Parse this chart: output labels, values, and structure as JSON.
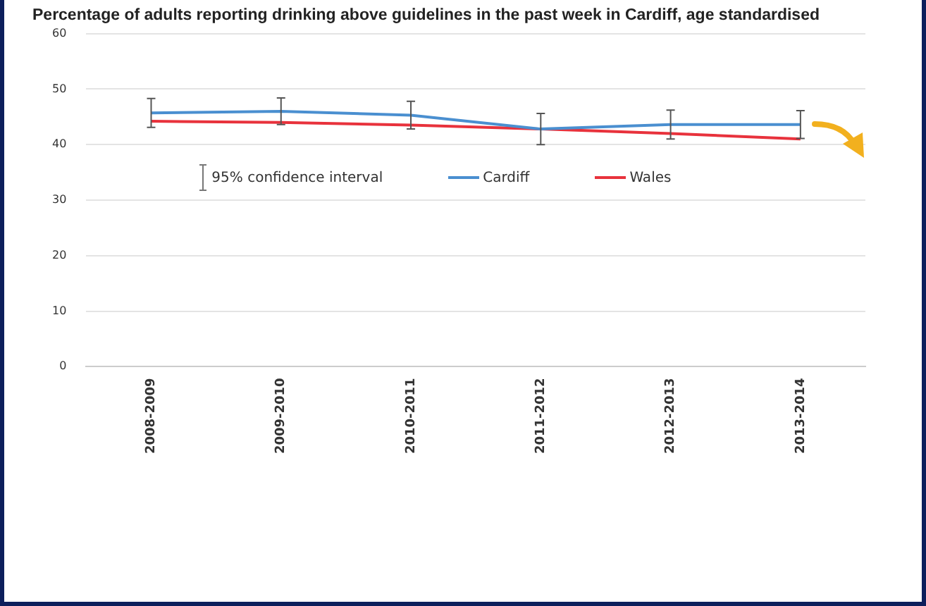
{
  "chart_data": {
    "type": "line",
    "title": "Percentage of adults reporting drinking above guidelines in the past week in Cardiff, age standardised",
    "categories": [
      "2008-2009",
      "2009-2010",
      "2010-2011",
      "2011-2012",
      "2012-2013",
      "2013-2014"
    ],
    "series": [
      {
        "name": "Cardiff",
        "color": "#4a8fd0",
        "values": [
          45.7,
          46,
          45.3,
          42.8,
          43.6,
          43.6
        ],
        "errors": [
          2.6,
          2.4,
          2.5,
          2.8,
          2.6,
          2.5
        ]
      },
      {
        "name": "Wales",
        "color": "#e8323c",
        "values": [
          44.2,
          44,
          43.5,
          42.8,
          42,
          41
        ]
      }
    ],
    "ylim": [
      0,
      60
    ],
    "yticks": [
      0,
      10,
      20,
      30,
      40,
      50,
      60
    ],
    "grid": "y",
    "legend": "center",
    "marker": "none",
    "line_style": "solid",
    "annotations": [
      "95% confidence interval"
    ]
  }
}
